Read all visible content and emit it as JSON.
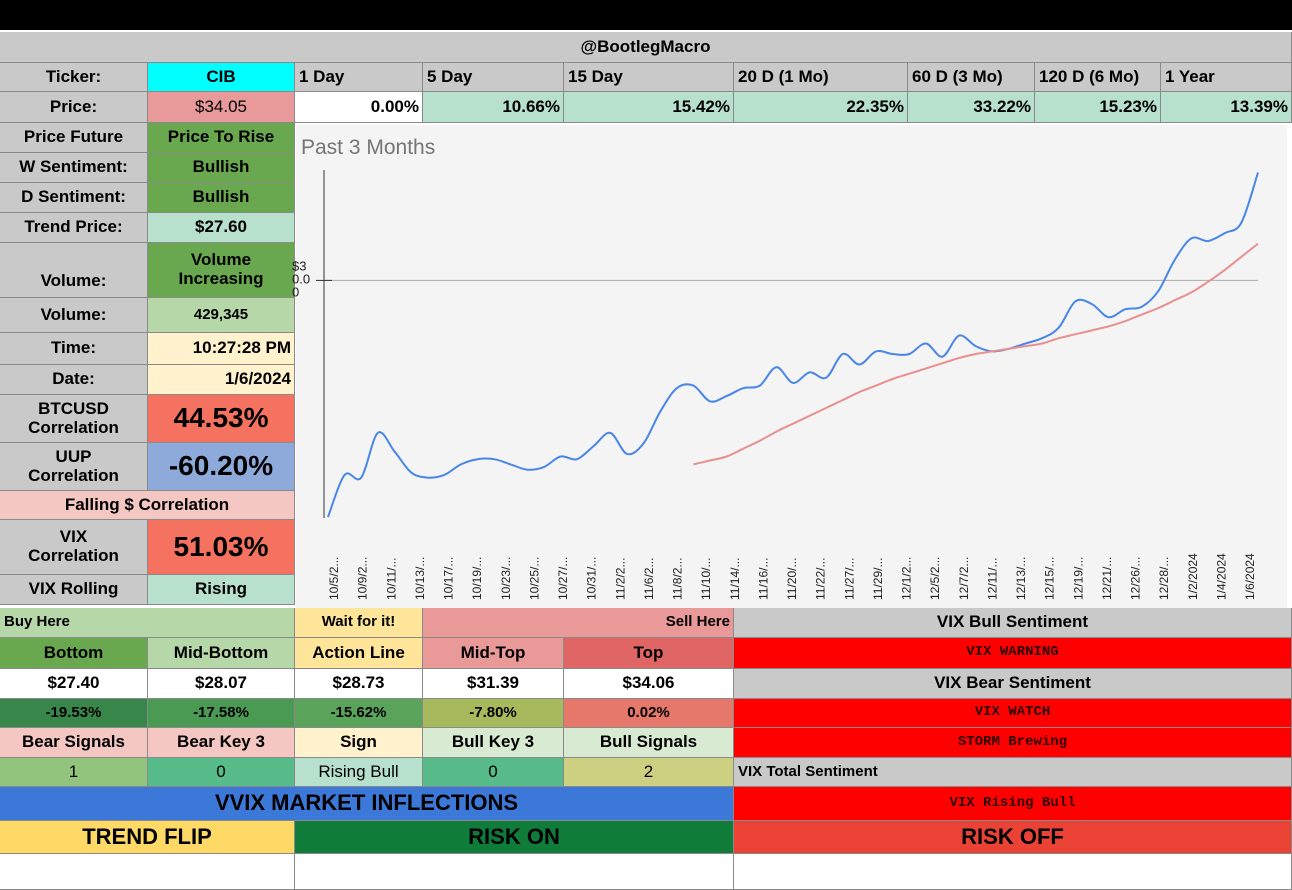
{
  "header": {
    "title": "@BootlegMacro"
  },
  "ticker": {
    "label": "Ticker:",
    "value": "CIB"
  },
  "periods": [
    "1 Day",
    "5 Day",
    "15 Day",
    "20 D (1 Mo)",
    "60 D (3 Mo)",
    "120 D (6 Mo)",
    "1 Year"
  ],
  "price": {
    "label": "Price:",
    "value": "$34.05"
  },
  "returns": [
    "0.00%",
    "10.66%",
    "15.42%",
    "22.35%",
    "33.22%",
    "15.23%",
    "13.39%"
  ],
  "left_panel": {
    "price_future": {
      "label": "Price Future",
      "value": "Price To Rise"
    },
    "w_sentiment": {
      "label": "W Sentiment:",
      "value": "Bullish"
    },
    "d_sentiment": {
      "label": "D Sentiment:",
      "value": "Bullish"
    },
    "trend_price": {
      "label": "Trend Price:",
      "value": "$27.60"
    },
    "volume_trend": {
      "label": "Volume:",
      "value": "Volume Increasing"
    },
    "volume": {
      "label": "Volume:",
      "value": "429,345"
    },
    "time": {
      "label": "Time:",
      "value": "10:27:28 PM"
    },
    "date": {
      "label": "Date:",
      "value": "1/6/2024"
    },
    "btc_corr": {
      "label": "BTCUSD Correlation",
      "value": "44.53%"
    },
    "uup_corr": {
      "label": "UUP Correlation",
      "value": "-60.20%"
    },
    "falling_dollar": {
      "label": "Falling $ Correlation"
    },
    "vix_corr": {
      "label": "VIX Correlation",
      "value": "51.03%"
    },
    "vix_rolling": {
      "label": "VIX Rolling",
      "value": "Rising"
    }
  },
  "chart_data": {
    "type": "line",
    "title": "Past 3 Months",
    "y_tick_label": "$30.00",
    "x_labels": [
      "10/5/2...",
      "10/9/2...",
      "10/11/...",
      "10/13/...",
      "10/17/...",
      "10/19/...",
      "10/23/...",
      "10/25/...",
      "10/27/...",
      "10/31/...",
      "11/2/2...",
      "11/6/2...",
      "11/8/2...",
      "11/10/...",
      "11/14/...",
      "11/16/...",
      "11/20/...",
      "11/22/...",
      "11/27/...",
      "11/29/...",
      "12/1/2...",
      "12/5/2...",
      "12/7/2...",
      "12/11/...",
      "12/13/...",
      "12/15/...",
      "12/19/...",
      "12/21/...",
      "12/26/...",
      "12/28/...",
      "1/2/2024",
      "1/4/2024",
      "1/6/2024"
    ],
    "series": [
      {
        "name": "Price",
        "color": "#4a86e8",
        "values": [
          21.0,
          22.6,
          22.5,
          24.2,
          23.5,
          22.7,
          22.5,
          22.6,
          23.0,
          23.2,
          23.2,
          23.0,
          22.8,
          22.9,
          23.3,
          23.2,
          23.7,
          24.2,
          23.4,
          23.8,
          25.0,
          25.9,
          26.0,
          25.4,
          25.6,
          25.9,
          26.0,
          26.7,
          26.1,
          26.5,
          26.3,
          27.2,
          26.8,
          27.3,
          27.2,
          27.2,
          27.6,
          27.1,
          27.9,
          27.5,
          27.3,
          27.4,
          27.6,
          27.8,
          28.2,
          29.2,
          29.1,
          28.6,
          28.9,
          29.0,
          29.6,
          30.8,
          31.6,
          31.5,
          31.8,
          32.2,
          34.1
        ]
      },
      {
        "name": "Trend",
        "color": "#e89090",
        "values": [
          null,
          null,
          null,
          null,
          null,
          null,
          null,
          null,
          null,
          null,
          null,
          null,
          null,
          null,
          null,
          null,
          null,
          null,
          null,
          null,
          null,
          null,
          23.0,
          23.15,
          23.3,
          23.6,
          23.9,
          24.25,
          24.55,
          24.85,
          25.15,
          25.45,
          25.75,
          26.0,
          26.25,
          26.45,
          26.65,
          26.85,
          27.05,
          27.2,
          27.3,
          27.4,
          27.5,
          27.6,
          27.8,
          27.95,
          28.1,
          28.25,
          28.45,
          28.7,
          28.95,
          29.25,
          29.55,
          29.95,
          30.4,
          30.9,
          31.4
        ]
      }
    ]
  },
  "levels": {
    "buy_here": "Buy Here",
    "wait": "Wait for it!",
    "sell_here": "Sell Here",
    "headers": [
      "Bottom",
      "Mid-Bottom",
      "Action Line",
      "Mid-Top",
      "Top"
    ],
    "prices": [
      "$27.40",
      "$28.07",
      "$28.73",
      "$31.39",
      "$34.06"
    ],
    "pcts": [
      "-19.53%",
      "-17.58%",
      "-15.62%",
      "-7.80%",
      "0.02%"
    ],
    "signal_headers": [
      "Bear Signals",
      "Bear Key 3",
      "Sign",
      "Bull Key 3",
      "Bull Signals"
    ],
    "signal_values": [
      "1",
      "0",
      "Rising Bull",
      "0",
      "2"
    ]
  },
  "vix": {
    "bull_label": "VIX Bull Sentiment",
    "bull_value": "VIX WARNING",
    "bear_label": "VIX Bear Sentiment",
    "bear_value1": "VIX WATCH",
    "bear_value2": "STORM Brewing",
    "total_label": "VIX Total Sentiment",
    "total_value": "VIX Rising Bull"
  },
  "vvix": {
    "title": "VVIX MARKET INFLECTIONS",
    "trend_flip": "TREND FLIP",
    "risk_on": "RISK ON",
    "risk_off": "RISK OFF"
  },
  "colors": {
    "blue_line": "#4a86e8",
    "red_line": "#e89090",
    "vix_red": "#ff0000"
  }
}
